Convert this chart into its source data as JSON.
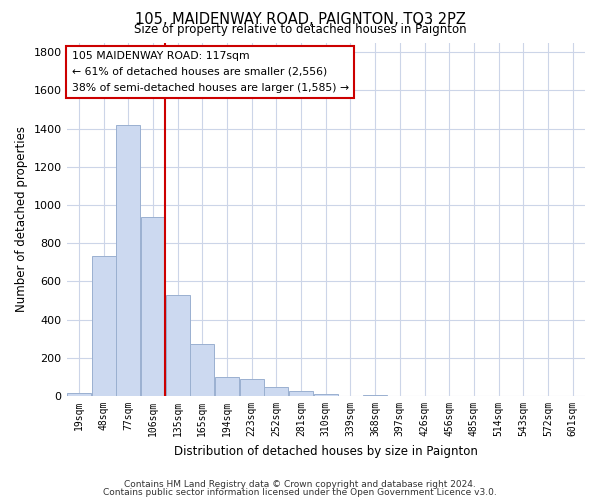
{
  "title": "105, MAIDENWAY ROAD, PAIGNTON, TQ3 2PZ",
  "subtitle": "Size of property relative to detached houses in Paignton",
  "xlabel": "Distribution of detached houses by size in Paignton",
  "ylabel": "Number of detached properties",
  "bar_color": "#ccd9f0",
  "bar_edge_color": "#9ab0d0",
  "vline_color": "#cc0000",
  "categories": [
    "19sqm",
    "48sqm",
    "77sqm",
    "106sqm",
    "135sqm",
    "165sqm",
    "194sqm",
    "223sqm",
    "252sqm",
    "281sqm",
    "310sqm",
    "339sqm",
    "368sqm",
    "397sqm",
    "426sqm",
    "456sqm",
    "485sqm",
    "514sqm",
    "543sqm",
    "572sqm",
    "601sqm"
  ],
  "values": [
    18,
    735,
    1420,
    935,
    530,
    270,
    100,
    90,
    50,
    25,
    10,
    0,
    5,
    0,
    0,
    0,
    0,
    0,
    0,
    0,
    0
  ],
  "vline_pos": 3.5,
  "ylim": [
    0,
    1850
  ],
  "yticks": [
    0,
    200,
    400,
    600,
    800,
    1000,
    1200,
    1400,
    1600,
    1800
  ],
  "annotation_line1": "105 MAIDENWAY ROAD: 117sqm",
  "annotation_line2": "← 61% of detached houses are smaller (2,556)",
  "annotation_line3": "38% of semi-detached houses are larger (1,585) →",
  "footer_line1": "Contains HM Land Registry data © Crown copyright and database right 2024.",
  "footer_line2": "Contains public sector information licensed under the Open Government Licence v3.0.",
  "background_color": "#ffffff",
  "grid_color": "#ccd5e8"
}
